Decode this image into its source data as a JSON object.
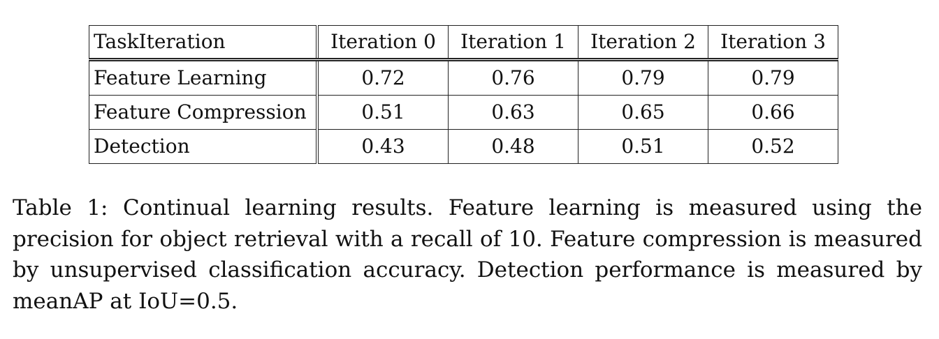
{
  "table": {
    "header": {
      "corner": "TaskIteration",
      "columns": [
        "Iteration 0",
        "Iteration 1",
        "Iteration 2",
        "Iteration 3"
      ]
    },
    "rows": [
      {
        "task": "Feature Learning",
        "values": [
          "0.72",
          "0.76",
          "0.79",
          "0.79"
        ]
      },
      {
        "task": "Feature Compression",
        "values": [
          "0.51",
          "0.63",
          "0.65",
          "0.66"
        ]
      },
      {
        "task": "Detection",
        "values": [
          "0.43",
          "0.48",
          "0.51",
          "0.52"
        ]
      }
    ]
  },
  "caption": {
    "text": "Table 1: Continual learning results. Feature learning is measured using the precision for object retrieval with a recall of 10. Feature compression is measured by unsupervised classification accuracy. Detection performance is measured by meanAP at IoU=0.5."
  }
}
